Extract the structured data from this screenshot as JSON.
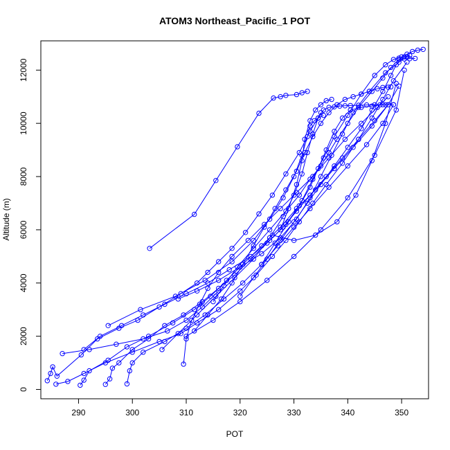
{
  "chart_data": {
    "type": "line",
    "title": "ATOM3 Northeast_Pacific_1 POT",
    "xlabel": "POT",
    "ylabel": "Altitude (m)",
    "xlim": [
      283,
      355
    ],
    "ylim": [
      -350,
      13100
    ],
    "xticks": [
      290,
      300,
      310,
      320,
      330,
      340,
      350
    ],
    "yticks": [
      0,
      2000,
      4000,
      6000,
      8000,
      10000,
      12000
    ],
    "grid": false,
    "legend": "none",
    "marker": "open-circle",
    "color": "#0000ff",
    "series": [
      {
        "x": [
          303.2,
          311.5,
          315.5,
          319.5,
          323.5,
          326.2,
          327.5,
          328.5,
          330.5,
          331.5,
          332.5
        ],
        "y": [
          5300,
          6580,
          7850,
          9120,
          10380,
          10950,
          11000,
          11050,
          11080,
          11150,
          11200
        ]
      },
      {
        "x": [
          284.2,
          284.8,
          285.2,
          286.0,
          290.5,
          293.5,
          297.5,
          301.0,
          305.0,
          309.0,
          312.0,
          314.0,
          316.0,
          318.5,
          321.0,
          323.5,
          326.0,
          328.5,
          331.0,
          333.0,
          335.0
        ],
        "y": [
          330,
          600,
          850,
          500,
          1300,
          1900,
          2300,
          2600,
          3100,
          3600,
          4000,
          4400,
          4800,
          5300,
          5900,
          6600,
          7300,
          8100,
          8900,
          9700,
          10400
        ]
      },
      {
        "x": [
          285.8,
          288.0,
          291.0,
          295.0,
          300.0,
          305.0,
          309.0,
          312.0,
          316.0,
          320.0,
          323.0,
          326.0,
          328.5,
          331.0,
          333.5,
          336.0,
          339.0,
          342.0,
          344.5,
          346.5,
          348.5,
          351.0
        ],
        "y": [
          200,
          300,
          600,
          1000,
          1400,
          1800,
          2100,
          2500,
          3000,
          3700,
          4300,
          5000,
          5600,
          6300,
          7000,
          7700,
          8500,
          9400,
          10200,
          10900,
          11600,
          12300
        ]
      },
      {
        "x": [
          290.3,
          291.0,
          292.0,
          295.5,
          299.0,
          303.0,
          307.5,
          311.5,
          314.5,
          317.5,
          320.5,
          324.0,
          327.5,
          330.5,
          334.0,
          337.5,
          341.0,
          344.5,
          347.5,
          349.5
        ],
        "y": [
          160,
          350,
          700,
          1100,
          1600,
          2000,
          2500,
          3000,
          3500,
          4100,
          4700,
          5400,
          6100,
          6800,
          7500,
          8300,
          9100,
          9900,
          10700,
          11400
        ]
      },
      {
        "x": [
          295.0,
          295.8,
          296.3,
          297.5,
          300.0,
          303.0,
          306.0,
          309.5,
          313.0,
          316.0,
          319.0,
          322.0,
          325.0,
          328.0,
          330.5,
          333.0,
          336.0,
          339.0,
          342.0,
          345.0,
          347.5
        ],
        "y": [
          190,
          400,
          800,
          1000,
          1500,
          1900,
          2400,
          2800,
          3300,
          3800,
          4300,
          4900,
          5500,
          6100,
          6700,
          7300,
          8000,
          8700,
          9400,
          10100,
          10700
        ]
      },
      {
        "x": [
          299.0,
          299.5,
          300.0,
          302.0,
          306.0,
          310.0,
          313.5,
          317.0,
          320.5,
          324.0,
          327.0,
          330.0,
          333.0,
          336.5,
          340.0,
          343.5,
          346.5,
          348.5
        ],
        "y": [
          210,
          700,
          1000,
          1400,
          1800,
          2300,
          2800,
          3400,
          4000,
          4700,
          5400,
          6100,
          6800,
          7600,
          8400,
          9200,
          10000,
          10700
        ]
      },
      {
        "x": [
          309.5,
          310.0,
          311.0,
          312.5,
          314.0,
          316.0,
          318.5,
          321.5,
          324.5,
          327.5,
          330.5,
          333.5,
          336.5,
          339.5,
          342.5,
          345.5,
          347.5
        ],
        "y": [
          950,
          1900,
          2600,
          3200,
          3800,
          4400,
          5000,
          5600,
          6200,
          6800,
          7400,
          8000,
          8700,
          9400,
          10000,
          10600,
          11000
        ]
      },
      {
        "x": [
          291.0,
          294.0,
          298.0,
          302.0,
          306.0,
          310.0,
          314.0,
          318.0,
          322.0,
          325.5,
          328.5,
          331.0,
          333.0,
          334.5,
          336.0,
          337.5,
          339.0,
          340.5,
          342.5,
          344.5,
          346.0,
          347.0,
          348.5
        ],
        "y": [
          1500,
          2000,
          2400,
          2800,
          3200,
          3600,
          4000,
          4500,
          5000,
          5600,
          6200,
          6900,
          7600,
          8300,
          9000,
          9700,
          10200,
          10500,
          10600,
          10650,
          10700,
          10700,
          10700
        ]
      },
      {
        "x": [
          295.5,
          301.5,
          308.0,
          313.5,
          318.5,
          322.5,
          325.5,
          328.0,
          330.0,
          331.5,
          332.5,
          333.0,
          333.8,
          334.5,
          335.5
        ],
        "y": [
          2400,
          3000,
          3500,
          4100,
          4800,
          5600,
          6400,
          7200,
          8000,
          8800,
          9500,
          9900,
          10100,
          10200,
          10300
        ]
      },
      {
        "x": [
          305.5,
          308.5,
          312.0,
          315.5,
          319.0,
          322.5,
          325.5,
          328.0,
          330.0,
          331.5,
          332.5,
          333.5,
          334.5,
          335.5,
          336.5,
          337.5,
          338.5,
          339.5,
          340.5,
          342.0,
          343.5,
          345.0,
          346.5
        ],
        "y": [
          1500,
          2100,
          2800,
          3500,
          4200,
          4900,
          5700,
          6500,
          7300,
          8100,
          8900,
          9600,
          10200,
          10500,
          10600,
          10620,
          10650,
          10660,
          10670,
          10680,
          10690,
          10700,
          10700
        ]
      },
      {
        "x": [
          311.5,
          314.0,
          316.5,
          318.5,
          320.5,
          322.5,
          324.5,
          326.5,
          328.5,
          330.5,
          332.0,
          333.5,
          335.0,
          336.5,
          338.0,
          339.5,
          341.0,
          342.5,
          344.0,
          345.5,
          346.5,
          347.5,
          348.0
        ],
        "y": [
          2200,
          2800,
          3400,
          4000,
          4700,
          5400,
          6100,
          6800,
          7500,
          8200,
          8900,
          9500,
          10000,
          10400,
          10700,
          10900,
          11000,
          11100,
          11200,
          11300,
          11350,
          11360,
          11370
        ]
      },
      {
        "x": [
          315.0,
          317.0,
          319.5,
          322.5,
          325.5,
          328.5,
          331.0,
          333.0,
          335.0,
          336.5,
          338.0,
          340.0,
          342.0,
          344.5,
          346.5,
          348.0,
          349.5,
          350.5,
          351.5,
          352.5
        ],
        "y": [
          3300,
          3900,
          4600,
          5300,
          6000,
          6700,
          7300,
          7900,
          8400,
          8900,
          9400,
          10000,
          10600,
          11200,
          11700,
          12100,
          12400,
          12420,
          12430,
          12440
        ]
      },
      {
        "x": [
          320.0,
          322.5,
          325.0,
          327.5,
          330.0,
          332.5,
          335.0,
          337.5,
          340.0,
          342.5,
          344.5,
          346.5,
          348.0,
          349.0,
          350.0,
          351.0,
          352.0,
          353.0,
          354.0
        ],
        "y": [
          3500,
          4200,
          4900,
          5600,
          6300,
          7000,
          7700,
          8400,
          9100,
          9800,
          10500,
          11200,
          11800,
          12200,
          12500,
          12600,
          12700,
          12750,
          12780
        ]
      },
      {
        "x": [
          324.0,
          326.5,
          329.0,
          331.5,
          333.5,
          335.5,
          337.5,
          340.0,
          342.5,
          345.0,
          347.0,
          348.5,
          349.5,
          350.5,
          351.5
        ],
        "y": [
          4700,
          5500,
          6300,
          7100,
          7900,
          8700,
          9500,
          10300,
          11100,
          11800,
          12200,
          12400,
          12450,
          12500,
          12550
        ]
      },
      {
        "x": [
          308.5,
          312.0,
          316.0,
          320.0,
          324.0,
          327.5,
          330.5,
          333.0,
          335.0,
          337.0,
          339.0,
          341.0,
          344.0,
          347.0,
          349.5,
          351.0
        ],
        "y": [
          3400,
          3700,
          4100,
          4600,
          5100,
          5700,
          6400,
          7200,
          8000,
          8800,
          9600,
          10400,
          11200,
          11900,
          12300,
          12500
        ]
      },
      {
        "x": [
          327.5,
          329.0,
          330.5,
          331.5,
          332.0,
          333.0,
          334.0,
          335.0,
          336.0,
          337.0
        ],
        "y": [
          6000,
          6800,
          7700,
          8600,
          9400,
          10100,
          10500,
          10700,
          10850,
          10900
        ]
      },
      {
        "x": [
          326.0,
          330.0,
          334.0,
          338.0,
          341.5,
          344.5,
          347.0,
          349.0
        ],
        "y": [
          5800,
          5600,
          5800,
          6300,
          7300,
          8600,
          10000,
          11500
        ]
      },
      {
        "x": [
          310.0,
          315.0,
          320.0,
          325.0,
          330.0,
          335.0,
          340.0,
          345.0,
          349.0,
          350.5
        ],
        "y": [
          2000,
          2600,
          3300,
          4100,
          5000,
          6000,
          7200,
          8800,
          10500,
          12000
        ]
      },
      {
        "x": [
          287.0,
          292.0,
          297.0,
          302.0,
          306.5,
          310.0,
          313.0,
          316.0
        ],
        "y": [
          1350,
          1500,
          1700,
          1900,
          2200,
          2600,
          3100,
          3700
        ]
      }
    ]
  }
}
